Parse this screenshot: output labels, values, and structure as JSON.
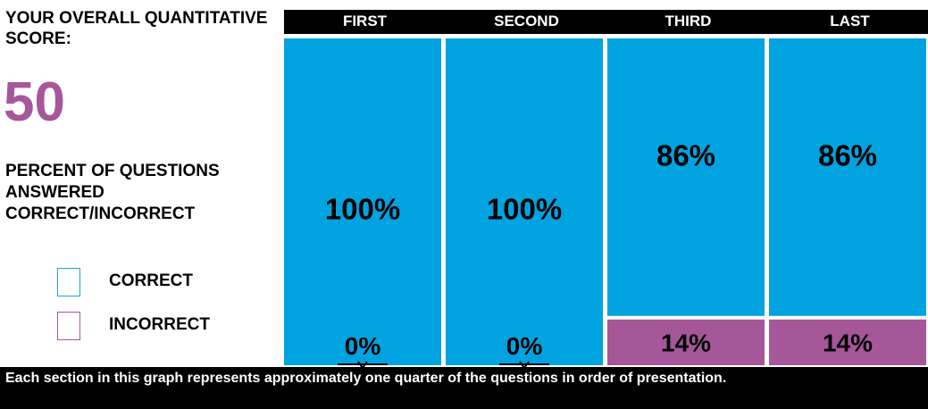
{
  "header": {
    "title": "YOUR OVERALL QUANTITATIVE SCORE:",
    "score": "50",
    "score_color": "#a5579a"
  },
  "subtitle": "PERCENT OF QUESTIONS ANSWERED CORRECT/INCORRECT",
  "legend": [
    {
      "label": "CORRECT",
      "color": "#1aa3dc"
    },
    {
      "label": "INCORRECT",
      "color": "#a5579a"
    }
  ],
  "footer_note": "Each section in this graph represents approximately one quarter of the questions in order of presentation.",
  "chart_data": {
    "type": "bar",
    "stacked": true,
    "categories": [
      "FIRST",
      "SECOND",
      "THIRD",
      "LAST"
    ],
    "series": [
      {
        "name": "CORRECT",
        "color": "#00a3e0",
        "values": [
          100,
          100,
          86,
          86
        ],
        "labels": [
          "100%",
          "100%",
          "86%",
          "86%"
        ]
      },
      {
        "name": "INCORRECT",
        "color": "#a5579a",
        "values": [
          0,
          0,
          14,
          14
        ],
        "labels": [
          "0%",
          "0%",
          "14%",
          "14%"
        ]
      }
    ],
    "ylim": [
      0,
      100
    ],
    "grid": false,
    "legend_position": "left"
  }
}
